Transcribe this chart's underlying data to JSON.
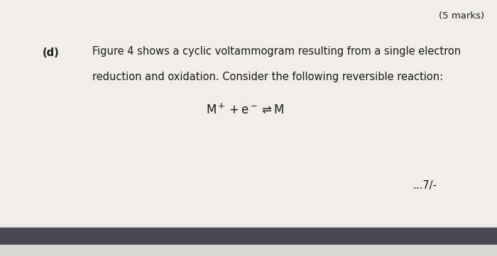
{
  "background_color": "#d8d8d4",
  "page_color": "#f0eeea",
  "marks_text": "(5 marks)",
  "marks_fontsize": 9.5,
  "label_text": "(d)",
  "label_fontsize": 10.5,
  "body_text_line1": "Figure 4 shows a cyclic voltammogram resulting from a single electron",
  "body_text_line2": "reduction and oxidation. Consider the following reversible reaction:",
  "body_fontsize": 10.5,
  "equation_fontsize": 12,
  "page_ref_text": "...7/-",
  "page_ref_fontsize": 10.5,
  "bottom_bar_color": "#4a4a50",
  "text_color": "#1a1a1a"
}
